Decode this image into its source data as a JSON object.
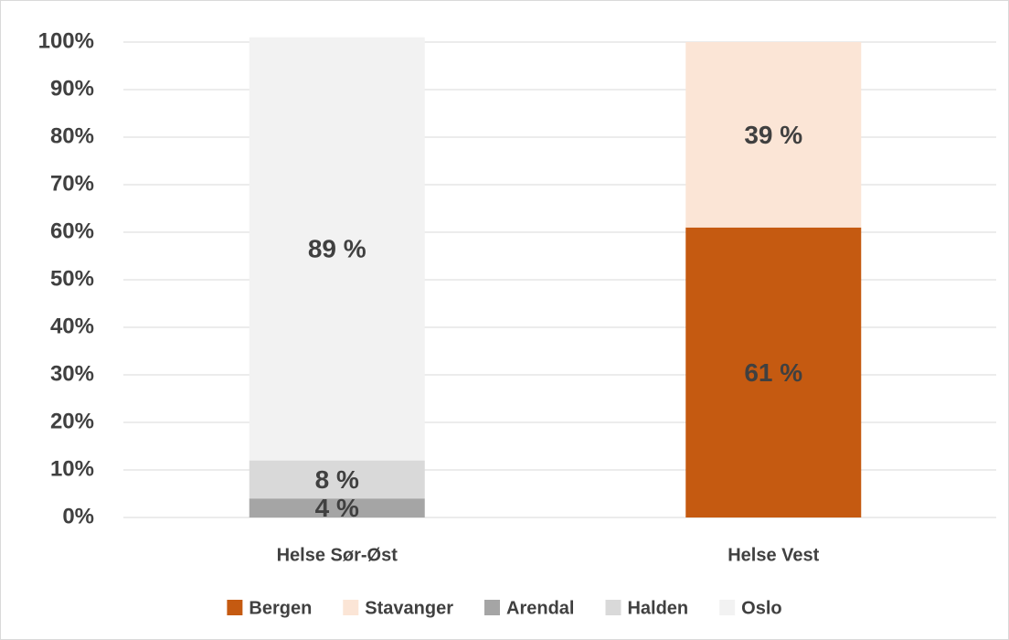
{
  "chart_data": {
    "type": "stacked_bar",
    "categories": [
      "Helse Sør-Øst",
      "Helse Vest"
    ],
    "series": [
      {
        "name": "Bergen",
        "color": "#c55a11",
        "values": [
          0,
          61
        ],
        "value_labels": [
          null,
          "61 %"
        ]
      },
      {
        "name": "Stavanger",
        "color": "#fbe5d6",
        "values": [
          0,
          39
        ],
        "value_labels": [
          null,
          "39 %"
        ]
      },
      {
        "name": "Arendal",
        "color": "#a5a5a5",
        "values": [
          4,
          0
        ],
        "value_labels": [
          "4 %",
          null
        ]
      },
      {
        "name": "Halden",
        "color": "#d9d9d9",
        "values": [
          8,
          0
        ],
        "value_labels": [
          "8 %",
          null
        ]
      },
      {
        "name": "Oslo",
        "color": "#f2f2f2",
        "values": [
          89,
          0
        ],
        "value_labels": [
          "89 %",
          null
        ]
      }
    ],
    "ylim": [
      0,
      100
    ],
    "yticks": [
      {
        "value": 0,
        "label": "0%"
      },
      {
        "value": 10,
        "label": "10%"
      },
      {
        "value": 20,
        "label": "20%"
      },
      {
        "value": 30,
        "label": "30%"
      },
      {
        "value": 40,
        "label": "40%"
      },
      {
        "value": 50,
        "label": "50%"
      },
      {
        "value": 60,
        "label": "60%"
      },
      {
        "value": 70,
        "label": "70%"
      },
      {
        "value": 80,
        "label": "80%"
      },
      {
        "value": 90,
        "label": "90%"
      },
      {
        "value": 100,
        "label": "100%"
      }
    ],
    "grid": true,
    "legend": "bottom"
  }
}
